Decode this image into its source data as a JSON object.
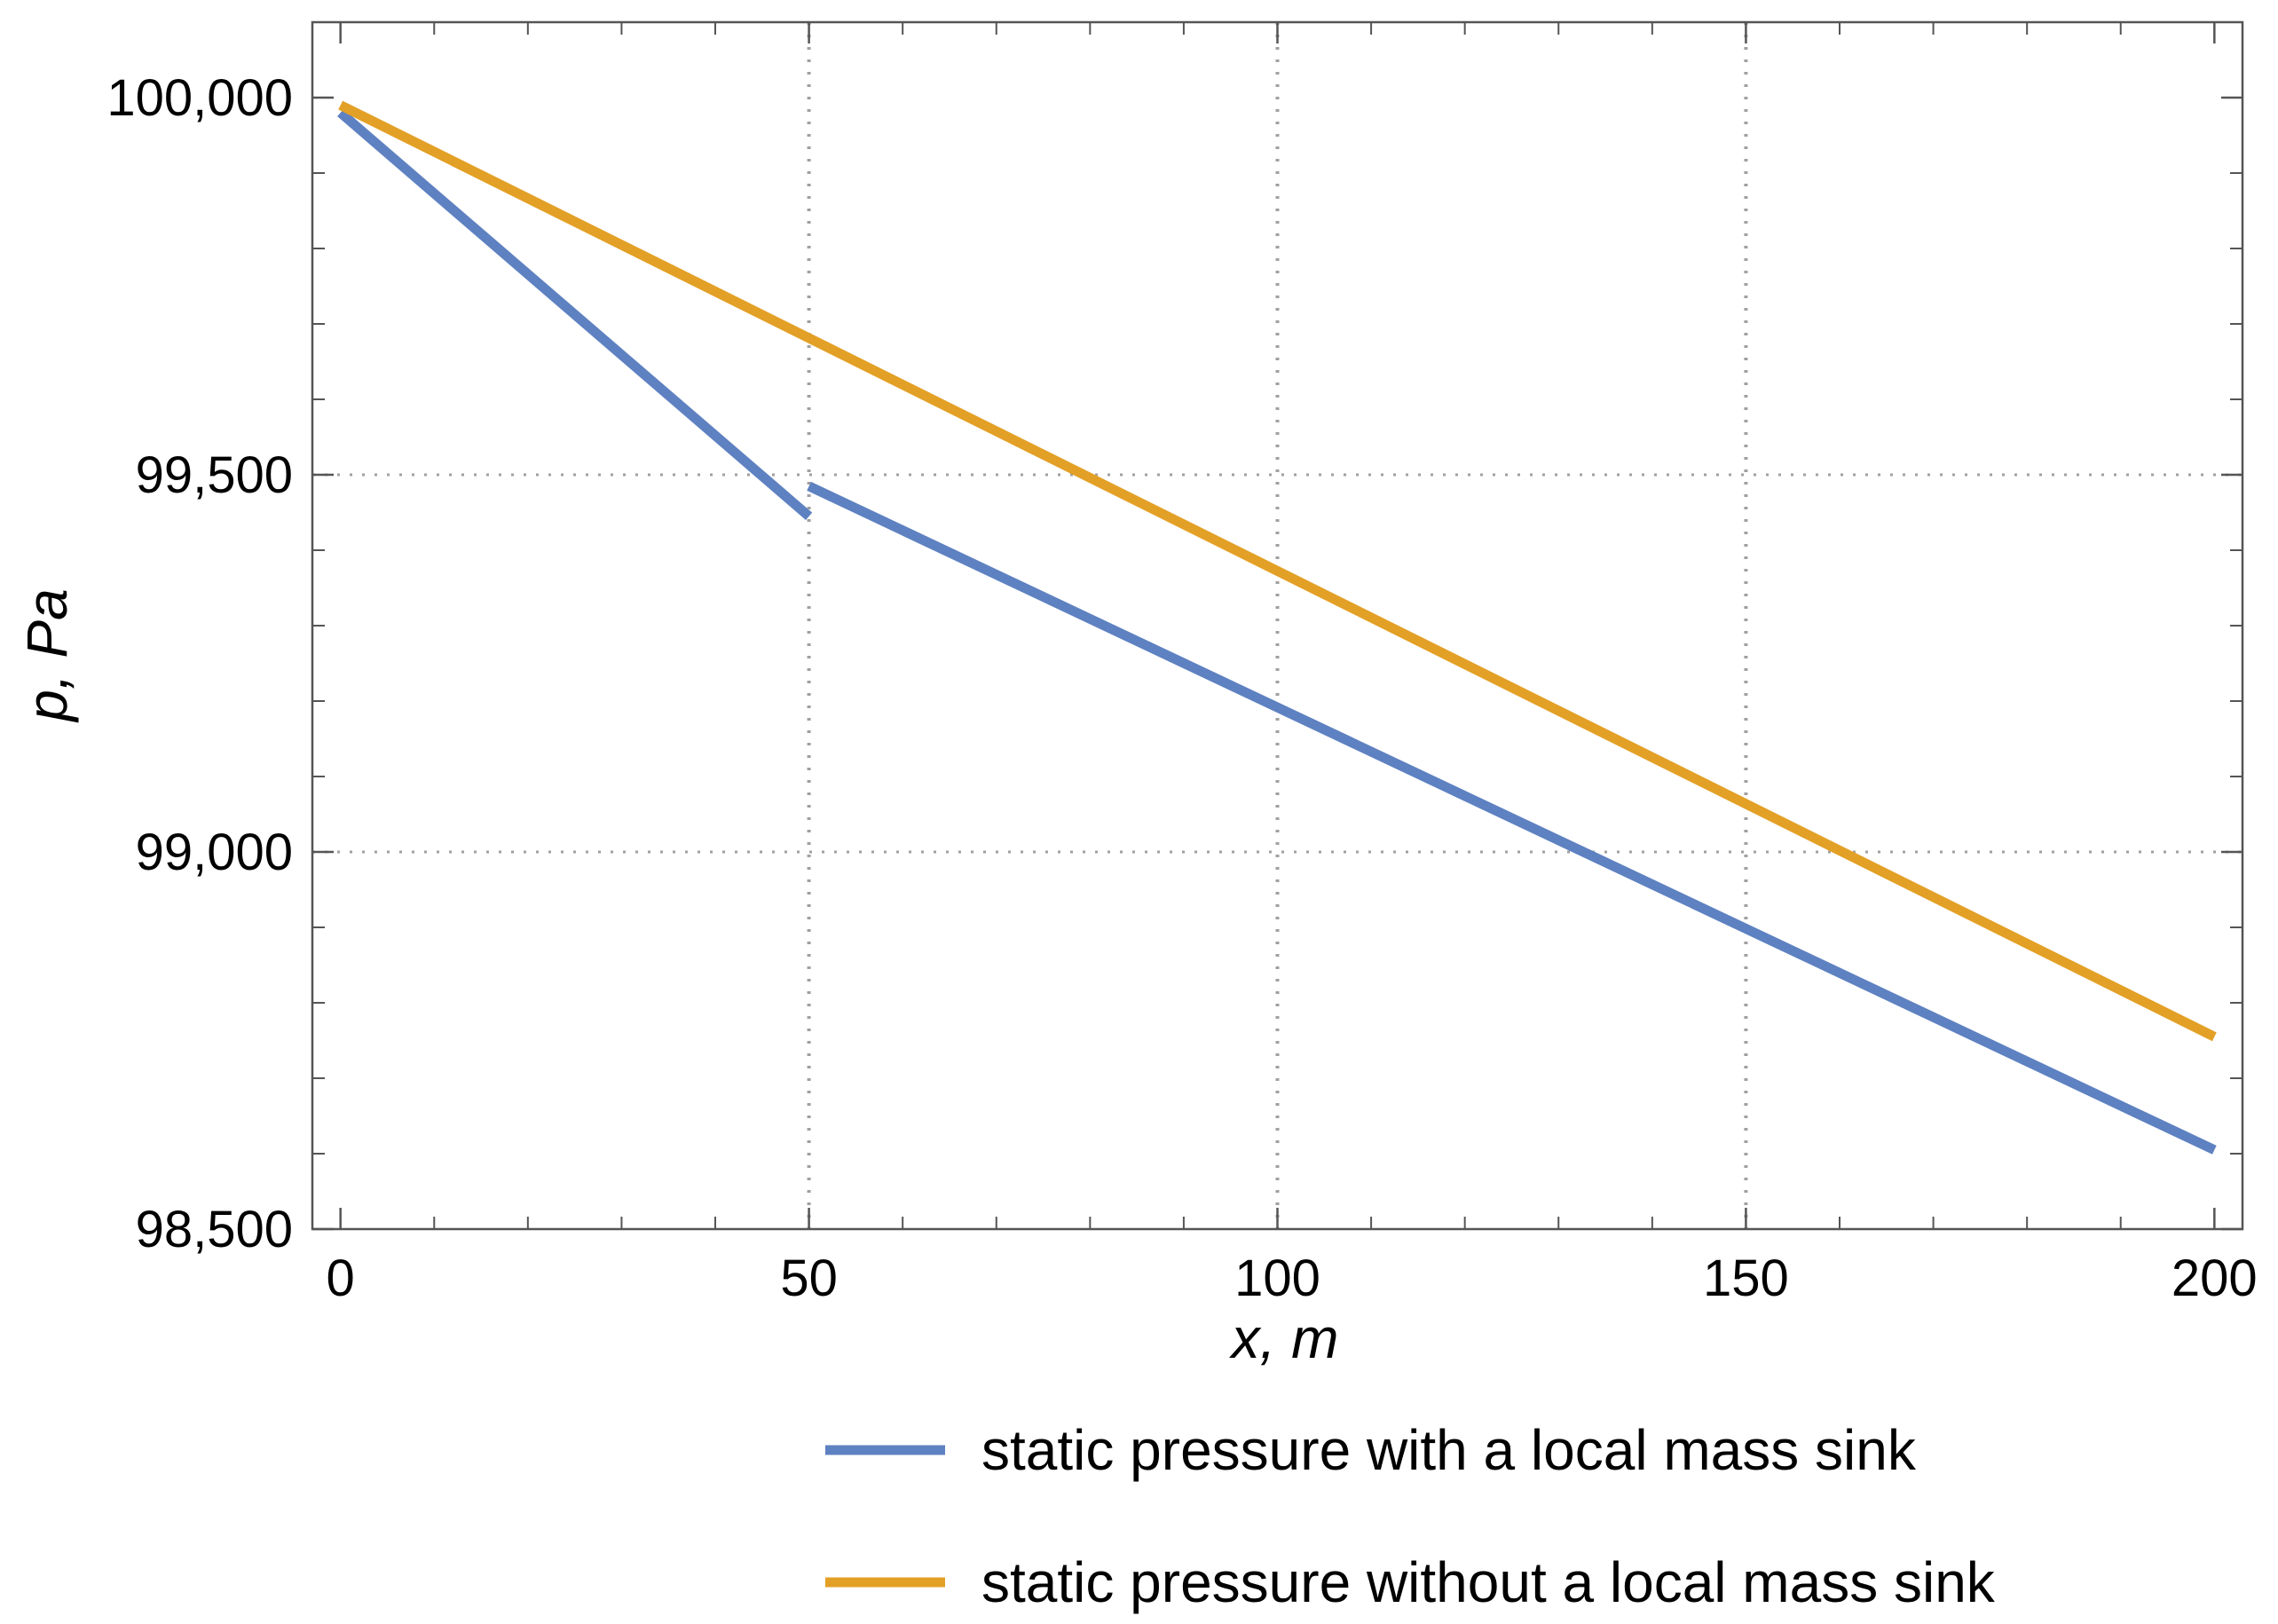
{
  "chart_data": {
    "type": "line",
    "title": "",
    "xlabel": "x, m",
    "ylabel": "p, Pa",
    "xlim": [
      -3,
      203
    ],
    "ylim": [
      98500,
      100100
    ],
    "xticks": [
      0,
      50,
      100,
      150,
      200
    ],
    "xtick_labels": [
      "0",
      "50",
      "100",
      "150",
      "200"
    ],
    "yticks": [
      98500,
      99000,
      99500,
      100000
    ],
    "ytick_labels": [
      "98,500",
      "99,000",
      "99,500",
      "100,000"
    ],
    "x_minor_step": 10,
    "y_minor_step": 100,
    "grid_x": [
      50,
      100,
      150
    ],
    "grid_y": [
      99000,
      99500
    ],
    "legend_position": "bottom-right, below plot",
    "series": [
      {
        "name": "static pressure with a local mass sink",
        "color": "#5e81c1",
        "segments": [
          [
            [
              0,
              99980
            ],
            [
              50,
              99445
            ]
          ],
          [
            [
              50,
              99485
            ],
            [
              200,
              98605
            ]
          ]
        ]
      },
      {
        "name": "static pressure without a local mass sink",
        "color": "#e3a026",
        "segments": [
          [
            [
              0,
              99990
            ],
            [
              200,
              98755
            ]
          ]
        ]
      }
    ]
  }
}
